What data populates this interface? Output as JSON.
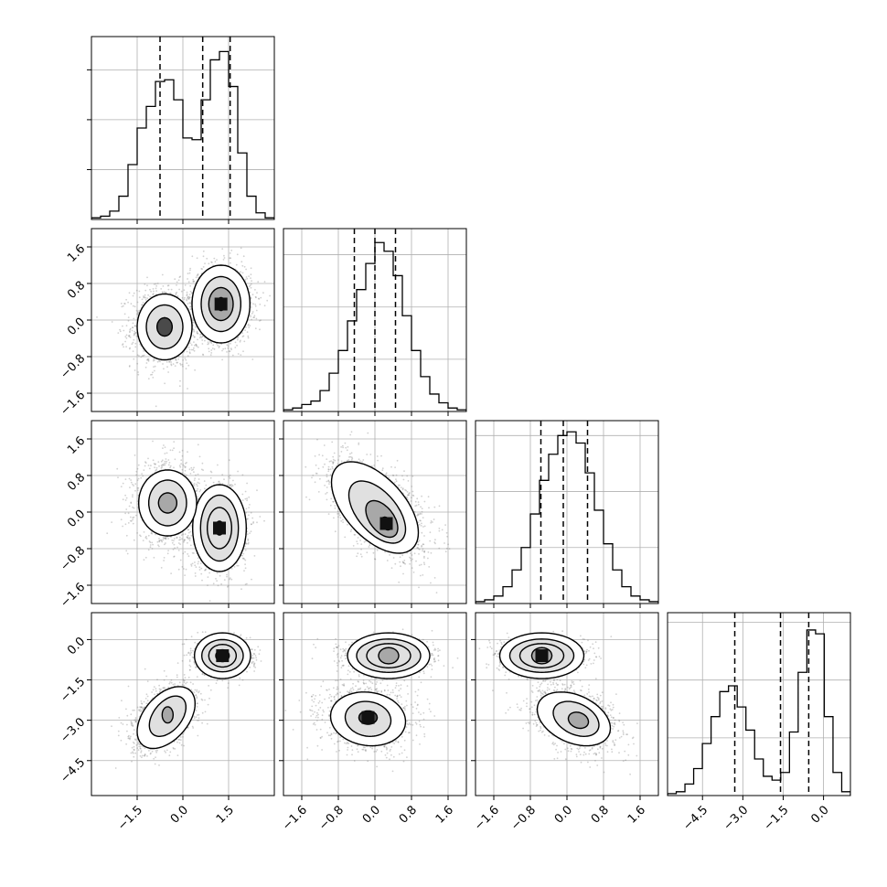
{
  "chart_data": {
    "type": "corner",
    "grid": true,
    "legend": "none",
    "parameters": [
      {
        "range": [
          -3.0,
          3.0
        ],
        "ticks": [
          -1.5,
          0.0,
          1.5
        ],
        "tick_labels": [
          "−1.5",
          "0.0",
          "1.5"
        ]
      },
      {
        "range": [
          -2.0,
          2.0
        ],
        "ticks": [
          -1.6,
          -0.8,
          0.0,
          0.8,
          1.6
        ],
        "tick_labels": [
          "−1.6",
          "−0.8",
          "0.0",
          "0.8",
          "1.6"
        ]
      },
      {
        "range": [
          -2.0,
          2.0
        ],
        "ticks": [
          -1.6,
          -0.8,
          0.0,
          0.8,
          1.6
        ],
        "tick_labels": [
          "−1.6",
          "−0.8",
          "0.0",
          "0.8",
          "1.6"
        ]
      },
      {
        "range": [
          -5.8,
          1.0
        ],
        "ticks": [
          -4.5,
          -3.0,
          -1.5,
          0.0
        ],
        "tick_labels": [
          "−4.5",
          "−3.0",
          "−1.5",
          "0.0"
        ]
      }
    ],
    "histograms": [
      {
        "edges_min": -3.0,
        "edges_max": 3.0,
        "counts": [
          1,
          2,
          5,
          14,
          33,
          55,
          68,
          83,
          84,
          72,
          49,
          48,
          72,
          96,
          101,
          80,
          40,
          14,
          4,
          1
        ],
        "quantiles": [
          -0.75,
          0.65,
          1.55
        ],
        "max_count": 110
      },
      {
        "edges_min": -2.0,
        "edges_max": 2.0,
        "counts": [
          1,
          2,
          4,
          6,
          12,
          22,
          35,
          52,
          70,
          85,
          97,
          92,
          78,
          55,
          35,
          20,
          10,
          5,
          2,
          1
        ],
        "quantiles": [
          -0.45,
          0.0,
          0.45
        ],
        "max_count": 105
      },
      {
        "edges_min": -2.0,
        "edges_max": 2.0,
        "counts": [
          1,
          2,
          4,
          9,
          18,
          30,
          48,
          66,
          80,
          90,
          92,
          86,
          70,
          50,
          32,
          18,
          9,
          4,
          2,
          1
        ],
        "quantiles": [
          -0.57,
          -0.08,
          0.45
        ],
        "max_count": 98
      },
      {
        "edges_min": -5.8,
        "edges_max": 1.0,
        "counts": [
          1,
          2,
          6,
          14,
          27,
          41,
          54,
          57,
          46,
          34,
          19,
          10,
          8,
          12,
          33,
          64,
          86,
          84,
          41,
          12,
          2
        ],
        "quantiles": [
          -3.3,
          -1.6,
          -0.55
        ],
        "max_count": 95
      }
    ],
    "scatter_pairs": [
      {
        "row": 1,
        "col": 0,
        "clusters": [
          {
            "mean": [
              -0.6,
              -0.15
            ],
            "sd": [
              0.55,
              0.45
            ],
            "rho": 0.0,
            "weight": 0.45
          },
          {
            "mean": [
              1.25,
              0.35
            ],
            "sd": [
              0.5,
              0.42
            ],
            "rho": 0.0,
            "weight": 0.55
          }
        ],
        "contours": [
          {
            "center": [
              -0.6,
              -0.15
            ],
            "radii": [
              0.25,
              0.2
            ],
            "rho": 0.0
          },
          {
            "center": [
              -0.6,
              -0.15
            ],
            "radii": [
              0.6,
              0.48
            ],
            "rho": 0.0
          },
          {
            "center": [
              -0.6,
              -0.15
            ],
            "radii": [
              0.9,
              0.72
            ],
            "rho": 0.0
          },
          {
            "center": [
              1.25,
              0.35
            ],
            "radii": [
              0.14,
              0.14
            ],
            "rho": 0.0
          },
          {
            "center": [
              1.25,
              0.35
            ],
            "radii": [
              0.4,
              0.36
            ],
            "rho": 0.0
          },
          {
            "center": [
              1.25,
              0.35
            ],
            "radii": [
              0.65,
              0.6
            ],
            "rho": 0.0
          },
          {
            "center": [
              1.25,
              0.35
            ],
            "radii": [
              0.95,
              0.85
            ],
            "rho": 0.0
          }
        ]
      },
      {
        "row": 2,
        "col": 0,
        "clusters": [
          {
            "mean": [
              -0.5,
              0.2
            ],
            "sd": [
              0.55,
              0.45
            ],
            "rho": 0.0,
            "weight": 0.45
          },
          {
            "mean": [
              1.2,
              -0.35
            ],
            "sd": [
              0.45,
              0.45
            ],
            "rho": 0.0,
            "weight": 0.55
          }
        ],
        "contours": [
          {
            "center": [
              -0.5,
              0.2
            ],
            "radii": [
              0.3,
              0.22
            ],
            "rho": 0.0
          },
          {
            "center": [
              -0.5,
              0.2
            ],
            "radii": [
              0.62,
              0.5
            ],
            "rho": 0.0
          },
          {
            "center": [
              -0.5,
              0.2
            ],
            "radii": [
              0.95,
              0.72
            ],
            "rho": 0.0
          },
          {
            "center": [
              1.2,
              -0.35
            ],
            "radii": [
              0.15,
              0.15
            ],
            "rho": 0.0
          },
          {
            "center": [
              1.2,
              -0.35
            ],
            "radii": [
              0.4,
              0.45
            ],
            "rho": 0.0
          },
          {
            "center": [
              1.2,
              -0.35
            ],
            "radii": [
              0.62,
              0.72
            ],
            "rho": 0.0
          },
          {
            "center": [
              1.2,
              -0.35
            ],
            "radii": [
              0.88,
              0.95
            ],
            "rho": 0.0
          }
        ]
      },
      {
        "row": 2,
        "col": 1,
        "clusters": [
          {
            "mean": [
              0.05,
              0.1
            ],
            "sd": [
              0.48,
              0.48
            ],
            "rho": -0.55,
            "weight": 1.0
          }
        ],
        "contours": [
          {
            "center": [
              0.25,
              -0.25
            ],
            "radii": [
              0.12,
              0.14
            ],
            "rho": -0.3
          },
          {
            "center": [
              0.15,
              -0.15
            ],
            "radii": [
              0.35,
              0.4
            ],
            "rho": -0.5
          },
          {
            "center": [
              0.05,
              0.0
            ],
            "radii": [
              0.62,
              0.68
            ],
            "rho": -0.55
          },
          {
            "center": [
              0.0,
              0.1
            ],
            "radii": [
              0.95,
              1.0
            ],
            "rho": -0.55
          }
        ]
      },
      {
        "row": 3,
        "col": 0,
        "clusters": [
          {
            "mean": [
              -0.6,
              -2.9
            ],
            "sd": [
              0.55,
              0.62
            ],
            "rho": 0.45,
            "weight": 0.45
          },
          {
            "mean": [
              1.3,
              -0.6
            ],
            "sd": [
              0.42,
              0.3
            ],
            "rho": 0.0,
            "weight": 0.55
          }
        ],
        "contours": [
          {
            "center": [
              -0.5,
              -2.8
            ],
            "radii": [
              0.18,
              0.3
            ],
            "rho": 0.0
          },
          {
            "center": [
              -0.5,
              -2.85
            ],
            "radii": [
              0.6,
              0.75
            ],
            "rho": 0.45
          },
          {
            "center": [
              -0.55,
              -2.9
            ],
            "radii": [
              0.95,
              1.15
            ],
            "rho": 0.45
          },
          {
            "center": [
              1.3,
              -0.6
            ],
            "radii": [
              0.22,
              0.22
            ],
            "rho": 0.0
          },
          {
            "center": [
              1.3,
              -0.6
            ],
            "radii": [
              0.45,
              0.42
            ],
            "rho": 0.0
          },
          {
            "center": [
              1.3,
              -0.6
            ],
            "radii": [
              0.68,
              0.6
            ],
            "rho": 0.0
          },
          {
            "center": [
              1.3,
              -0.6
            ],
            "radii": [
              0.92,
              0.85
            ],
            "rho": 0.0
          }
        ]
      },
      {
        "row": 3,
        "col": 1,
        "clusters": [
          {
            "mean": [
              -0.2,
              -2.9
            ],
            "sd": [
              0.5,
              0.62
            ],
            "rho": -0.1,
            "weight": 0.45
          },
          {
            "mean": [
              0.3,
              -0.6
            ],
            "sd": [
              0.45,
              0.3
            ],
            "rho": 0.0,
            "weight": 0.55
          }
        ],
        "contours": [
          {
            "center": [
              -0.15,
              -2.9
            ],
            "radii": [
              0.2,
              0.25
            ],
            "rho": 0.0
          },
          {
            "center": [
              -0.15,
              -2.95
            ],
            "radii": [
              0.5,
              0.65
            ],
            "rho": -0.1
          },
          {
            "center": [
              -0.15,
              -2.95
            ],
            "radii": [
              0.82,
              1.0
            ],
            "rho": -0.1
          },
          {
            "center": [
              0.3,
              -0.6
            ],
            "radii": [
              0.22,
              0.3
            ],
            "rho": 0.0
          },
          {
            "center": [
              0.3,
              -0.6
            ],
            "radii": [
              0.48,
              0.45
            ],
            "rho": 0.0
          },
          {
            "center": [
              0.3,
              -0.6
            ],
            "radii": [
              0.7,
              0.62
            ],
            "rho": 0.0
          },
          {
            "center": [
              0.3,
              -0.6
            ],
            "radii": [
              0.9,
              0.85
            ],
            "rho": 0.0
          }
        ]
      },
      {
        "row": 3,
        "col": 2,
        "clusters": [
          {
            "mean": [
              0.15,
              -2.9
            ],
            "sd": [
              0.5,
              0.62
            ],
            "rho": -0.35,
            "weight": 0.45
          },
          {
            "mean": [
              -0.55,
              -0.6
            ],
            "sd": [
              0.45,
              0.3
            ],
            "rho": 0.0,
            "weight": 0.55
          }
        ],
        "contours": [
          {
            "center": [
              0.25,
              -3.0
            ],
            "radii": [
              0.22,
              0.3
            ],
            "rho": -0.2
          },
          {
            "center": [
              0.2,
              -2.95
            ],
            "radii": [
              0.5,
              0.65
            ],
            "rho": -0.35
          },
          {
            "center": [
              0.15,
              -2.95
            ],
            "radii": [
              0.8,
              1.0
            ],
            "rho": -0.35
          },
          {
            "center": [
              -0.55,
              -0.6
            ],
            "radii": [
              0.22,
              0.3
            ],
            "rho": 0.0
          },
          {
            "center": [
              -0.55,
              -0.6
            ],
            "radii": [
              0.48,
              0.45
            ],
            "rho": 0.0
          },
          {
            "center": [
              -0.55,
              -0.6
            ],
            "radii": [
              0.7,
              0.62
            ],
            "rho": 0.0
          },
          {
            "center": [
              -0.55,
              -0.6
            ],
            "radii": [
              0.92,
              0.85
            ],
            "rho": 0.0
          }
        ]
      }
    ]
  }
}
